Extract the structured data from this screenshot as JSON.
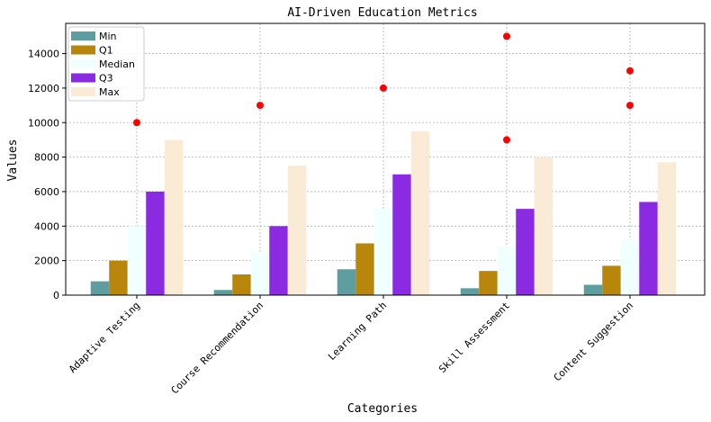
{
  "chart_data": {
    "type": "bar",
    "title": "AI-Driven Education Metrics",
    "xlabel": "Categories",
    "ylabel": "Values",
    "categories": [
      "Adaptive Testing",
      "Course Recommendation",
      "Learning Path",
      "Skill Assessment",
      "Content Suggestion"
    ],
    "series": [
      {
        "name": "Min",
        "color": "#5f9ea0",
        "values": [
          800,
          300,
          1500,
          400,
          600
        ]
      },
      {
        "name": "Q1",
        "color": "#b8860b",
        "values": [
          2000,
          1200,
          3000,
          1400,
          1700
        ]
      },
      {
        "name": "Median",
        "color": "#f0ffff",
        "values": [
          4000,
          2500,
          5000,
          2800,
          3200
        ]
      },
      {
        "name": "Q3",
        "color": "#8a2be2",
        "values": [
          6000,
          4000,
          7000,
          5000,
          5400
        ]
      },
      {
        "name": "Max",
        "color": "#faebd7",
        "values": [
          9000,
          7500,
          9500,
          8000,
          7700
        ]
      }
    ],
    "outliers": {
      "color": "#ff0000",
      "points": [
        {
          "category": "Adaptive Testing",
          "values": [
            10000
          ]
        },
        {
          "category": "Course Recommendation",
          "values": [
            11000
          ]
        },
        {
          "category": "Learning Path",
          "values": [
            12000
          ]
        },
        {
          "category": "Skill Assessment",
          "values": [
            15000,
            9000
          ]
        },
        {
          "category": "Content Suggestion",
          "values": [
            13000,
            11000
          ]
        }
      ]
    },
    "ylim": [
      0,
      15750
    ],
    "yticks": [
      0,
      2000,
      4000,
      6000,
      8000,
      10000,
      12000,
      14000
    ],
    "grid": true,
    "legend": "top-left"
  }
}
